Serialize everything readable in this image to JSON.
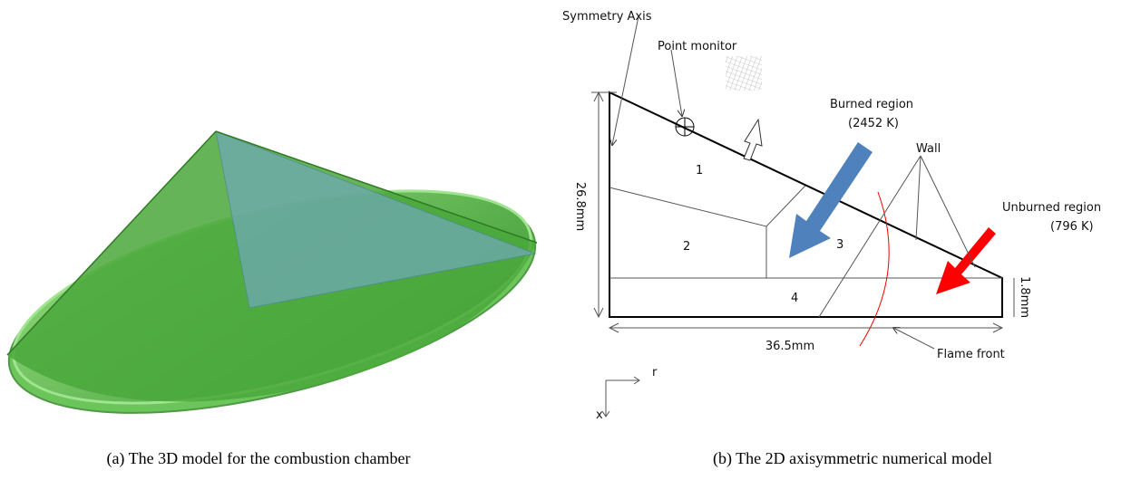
{
  "left_panel": {
    "caption": "(a) The 3D model for the combustion chamber"
  },
  "right_panel": {
    "caption": "(b) The 2D axisymmetric numerical model",
    "labels": {
      "symmetry_axis": "Symmetry Axis",
      "point_monitor": "Point monitor",
      "burned_region": "Burned region",
      "burned_temp": "(2452 K)",
      "wall": "Wall",
      "unburned_region": "Unburned region",
      "unburned_temp": "(796 K)",
      "flame_front": "Flame front",
      "height": "26.8mm",
      "width": "36.5mm",
      "gap": "1.8mm",
      "axis_r": "r",
      "axis_x": "x"
    },
    "regions": [
      "1",
      "2",
      "3",
      "4"
    ]
  }
}
